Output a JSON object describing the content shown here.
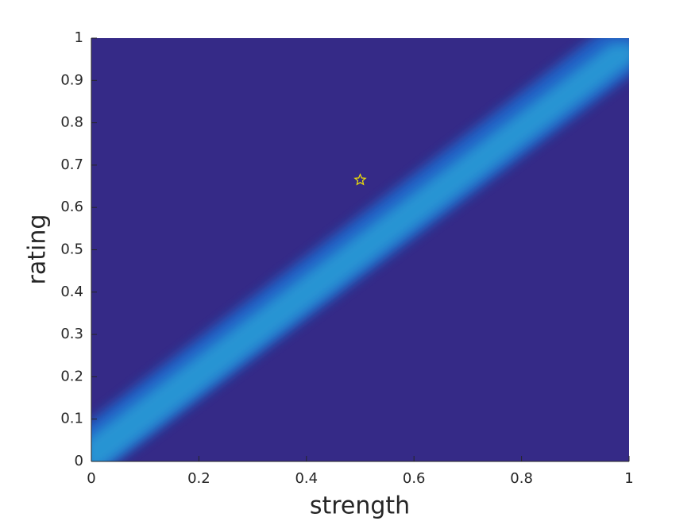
{
  "chart_data": {
    "type": "scatter",
    "xlabel": "strength",
    "ylabel": "rating",
    "xlim": [
      0,
      1
    ],
    "ylim": [
      0,
      1
    ],
    "xticks": [
      0,
      0.2,
      0.4,
      0.6,
      0.8,
      1
    ],
    "yticks": [
      0,
      0.1,
      0.2,
      0.3,
      0.4,
      0.5,
      0.6,
      0.7,
      0.8,
      0.9,
      1
    ],
    "background": "#352a87",
    "series": [
      {
        "x": [
          0.5
        ],
        "y": [
          0.665
        ],
        "color": "#f5e600"
      }
    ]
  }
}
